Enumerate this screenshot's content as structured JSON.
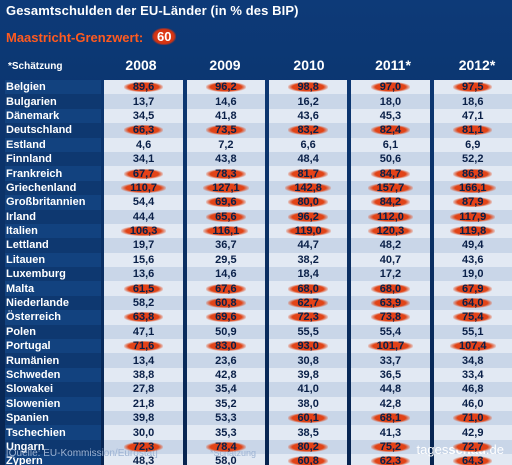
{
  "title": "Gesamtschulden der EU-Länder (in % des BIP)",
  "limit_label": "Maastricht-Grenzwert:",
  "limit_value": "60",
  "estimate_note": "*Schätzung",
  "footer_source": "[Quelle: EU-Kommission/Eurostat]",
  "footer_estimate": "*Schätzung",
  "logo": {
    "prefix": "tages",
    "bold": "schau",
    "suffix": ".de"
  },
  "highlight_color": "#e8401a",
  "chart_data": {
    "type": "table",
    "title": "Gesamtschulden der EU-Länder (in % des BIP)",
    "threshold": 60,
    "columns": [
      "2008",
      "2009",
      "2010",
      "2011*",
      "2012*"
    ],
    "rows": [
      {
        "country": "Belgien",
        "values": [
          "89,6",
          "96,2",
          "98,8",
          "97,0",
          "97,5"
        ]
      },
      {
        "country": "Bulgarien",
        "values": [
          "13,7",
          "14,6",
          "16,2",
          "18,0",
          "18,6"
        ]
      },
      {
        "country": "Dänemark",
        "values": [
          "34,5",
          "41,8",
          "43,6",
          "45,3",
          "47,1"
        ]
      },
      {
        "country": "Deutschland",
        "values": [
          "66,3",
          "73,5",
          "83,2",
          "82,4",
          "81,1"
        ]
      },
      {
        "country": "Estland",
        "values": [
          "4,6",
          "7,2",
          "6,6",
          "6,1",
          "6,9"
        ]
      },
      {
        "country": "Finnland",
        "values": [
          "34,1",
          "43,8",
          "48,4",
          "50,6",
          "52,2"
        ]
      },
      {
        "country": "Frankreich",
        "values": [
          "67,7",
          "78,3",
          "81,7",
          "84,7",
          "86,8"
        ]
      },
      {
        "country": "Griechenland",
        "values": [
          "110,7",
          "127,1",
          "142,8",
          "157,7",
          "166,1"
        ]
      },
      {
        "country": "Großbritannien",
        "values": [
          "54,4",
          "69,6",
          "80,0",
          "84,2",
          "87,9"
        ]
      },
      {
        "country": "Irland",
        "values": [
          "44,4",
          "65,6",
          "96,2",
          "112,0",
          "117,9"
        ]
      },
      {
        "country": "Italien",
        "values": [
          "106,3",
          "116,1",
          "119,0",
          "120,3",
          "119,8"
        ]
      },
      {
        "country": "Lettland",
        "values": [
          "19,7",
          "36,7",
          "44,7",
          "48,2",
          "49,4"
        ]
      },
      {
        "country": "Litauen",
        "values": [
          "15,6",
          "29,5",
          "38,2",
          "40,7",
          "43,6"
        ]
      },
      {
        "country": "Luxemburg",
        "values": [
          "13,6",
          "14,6",
          "18,4",
          "17,2",
          "19,0"
        ]
      },
      {
        "country": "Malta",
        "values": [
          "61,5",
          "67,6",
          "68,0",
          "68,0",
          "67,9"
        ]
      },
      {
        "country": "Niederlande",
        "values": [
          "58,2",
          "60,8",
          "62,7",
          "63,9",
          "64,0"
        ]
      },
      {
        "country": "Österreich",
        "values": [
          "63,8",
          "69,6",
          "72,3",
          "73,8",
          "75,4"
        ]
      },
      {
        "country": "Polen",
        "values": [
          "47,1",
          "50,9",
          "55,5",
          "55,4",
          "55,1"
        ]
      },
      {
        "country": "Portugal",
        "values": [
          "71,6",
          "83,0",
          "93,0",
          "101,7",
          "107,4"
        ]
      },
      {
        "country": "Rumänien",
        "values": [
          "13,4",
          "23,6",
          "30,8",
          "33,7",
          "34,8"
        ]
      },
      {
        "country": "Schweden",
        "values": [
          "38,8",
          "42,8",
          "39,8",
          "36,5",
          "33,4"
        ]
      },
      {
        "country": "Slowakei",
        "values": [
          "27,8",
          "35,4",
          "41,0",
          "44,8",
          "46,8"
        ]
      },
      {
        "country": "Slowenien",
        "values": [
          "21,8",
          "35,2",
          "38,0",
          "42,8",
          "46,0"
        ]
      },
      {
        "country": "Spanien",
        "values": [
          "39,8",
          "53,3",
          "60,1",
          "68,1",
          "71,0"
        ]
      },
      {
        "country": "Tschechien",
        "values": [
          "30,0",
          "35,3",
          "38,5",
          "41,3",
          "42,9"
        ]
      },
      {
        "country": "Ungarn",
        "values": [
          "72,3",
          "78,4",
          "80,2",
          "75,2",
          "72,7"
        ]
      },
      {
        "country": "Zypern",
        "values": [
          "48,3",
          "58,0",
          "60,8",
          "62,3",
          "64,3"
        ]
      }
    ]
  }
}
